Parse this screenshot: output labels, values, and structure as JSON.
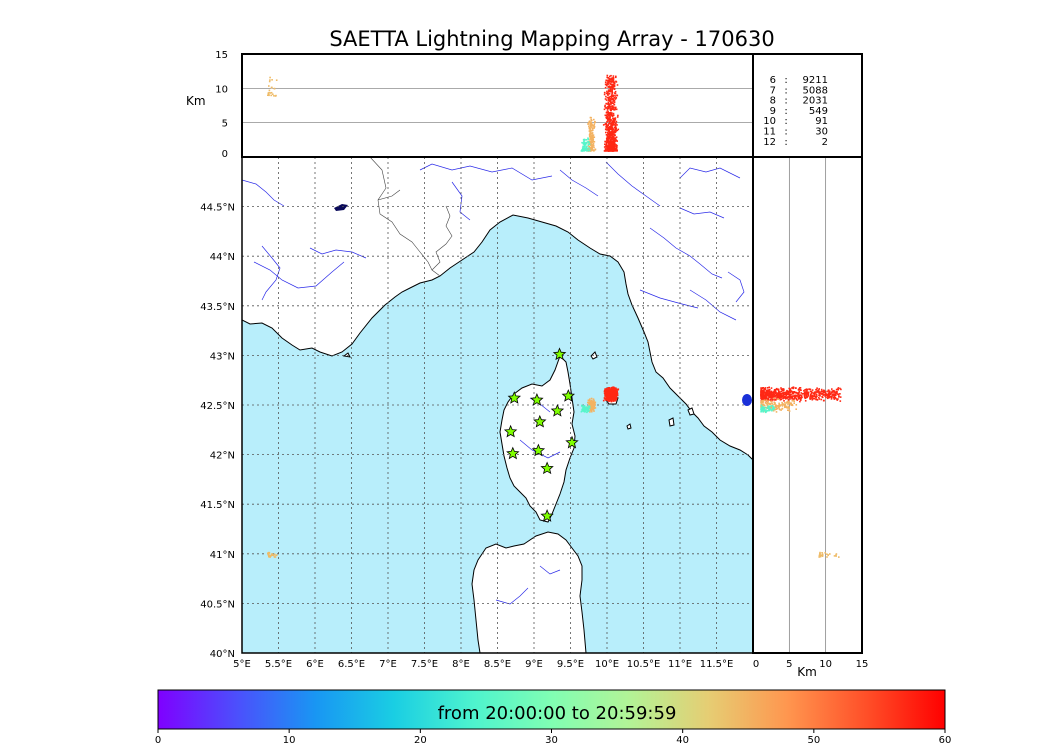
{
  "title": "SAETTA Lightning Mapping Array - 170630",
  "height_axis": {
    "label": "Km",
    "ticks": [
      "0",
      "5",
      "10",
      "15"
    ]
  },
  "lat_ticks": [
    "40°N",
    "40.5°N",
    "41°N",
    "41.5°N",
    "42°N",
    "42.5°N",
    "43°N",
    "43.5°N",
    "44°N",
    "44.5°N"
  ],
  "lon_ticks": [
    "5°E",
    "5.5°E",
    "6°E",
    "6.5°E",
    "7°E",
    "7.5°E",
    "8°E",
    "8.5°E",
    "9°E",
    "9.5°E",
    "10°E",
    "10.5°E",
    "11°E",
    "11.5°E"
  ],
  "counts": [
    {
      "label": "6",
      "value": "9211",
      "color": "#000000"
    },
    {
      "label": "7",
      "value": "5088",
      "color": "#ff0000"
    },
    {
      "label": "8",
      "value": "2031",
      "color": "#000000"
    },
    {
      "label": "9",
      "value": "549",
      "color": "#000000"
    },
    {
      "label": "10",
      "value": "91",
      "color": "#000000"
    },
    {
      "label": "11",
      "value": "30",
      "color": "#000000"
    },
    {
      "label": "12",
      "value": "2",
      "color": "#000000"
    }
  ],
  "colorbar": {
    "text": "from 20:00:00 to 20:59:59",
    "ticks": [
      "0",
      "10",
      "20",
      "30",
      "40",
      "50",
      "60"
    ],
    "min": 0,
    "max": 60
  },
  "colors": {
    "sea": "#b8eefb",
    "coast": "#000000",
    "rivers": "#2222ee",
    "station_fill": "#7fff00"
  },
  "chart_data": {
    "type": "scatter",
    "title": "SAETTA Lightning Mapping Array - 170630",
    "lon_range": [
      5,
      12
    ],
    "lat_range": [
      40,
      45
    ],
    "alt_range_km": [
      0,
      15
    ],
    "time_range_min": [
      0,
      60
    ],
    "grid": true,
    "stations": [
      {
        "lon": 9.35,
        "lat": 43.01
      },
      {
        "lon": 8.73,
        "lat": 42.57
      },
      {
        "lon": 9.04,
        "lat": 42.55
      },
      {
        "lon": 9.47,
        "lat": 42.59
      },
      {
        "lon": 9.32,
        "lat": 42.44
      },
      {
        "lon": 9.08,
        "lat": 42.33
      },
      {
        "lon": 8.68,
        "lat": 42.23
      },
      {
        "lon": 9.52,
        "lat": 42.12
      },
      {
        "lon": 8.71,
        "lat": 42.01
      },
      {
        "lon": 9.06,
        "lat": 42.04
      },
      {
        "lon": 9.18,
        "lat": 41.86
      },
      {
        "lon": 9.18,
        "lat": 41.38
      }
    ],
    "clusters": [
      {
        "time_min": 57,
        "lon": [
          9.97,
          10.12
        ],
        "lat": [
          42.56,
          42.67
        ],
        "alt_km": [
          1,
          12
        ],
        "count": 700
      },
      {
        "time_min": 45,
        "lon": [
          9.73,
          9.82
        ],
        "lat": [
          42.45,
          42.56
        ],
        "alt_km": [
          1,
          6
        ],
        "count": 160
      },
      {
        "time_min": 25,
        "lon": [
          9.64,
          9.74
        ],
        "lat": [
          42.44,
          42.5
        ],
        "alt_km": [
          1,
          3
        ],
        "count": 70
      },
      {
        "time_min": 44,
        "lon": [
          5.34,
          5.45
        ],
        "lat": [
          40.98,
          41.02
        ],
        "alt_km": [
          9,
          12
        ],
        "count": 25
      }
    ],
    "source_counts": [
      {
        "stations": 6,
        "sources": 9211
      },
      {
        "stations": 7,
        "sources": 5088
      },
      {
        "stations": 8,
        "sources": 2031
      },
      {
        "stations": 9,
        "sources": 549
      },
      {
        "stations": 10,
        "sources": 91
      },
      {
        "stations": 11,
        "sources": 30
      },
      {
        "stations": 12,
        "sources": 2
      }
    ]
  }
}
